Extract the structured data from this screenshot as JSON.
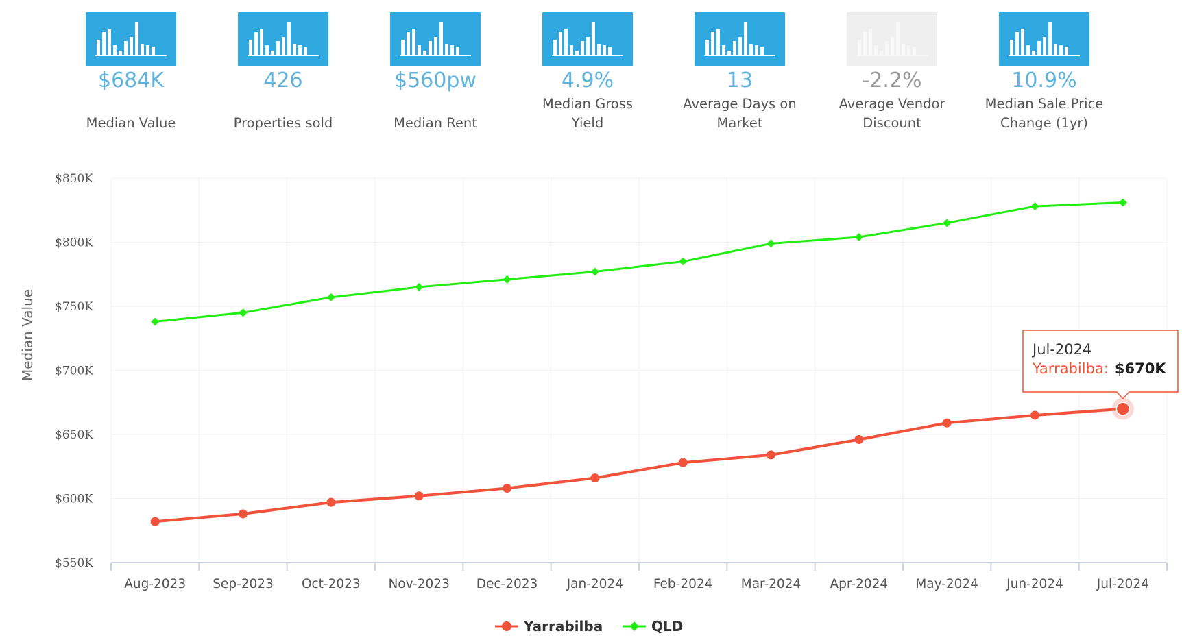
{
  "stats": [
    {
      "value": "$684K",
      "label": "Median Value",
      "icon": "bar-chart-icon",
      "color": "#2fa8e0",
      "muted": false
    },
    {
      "value": "426",
      "label": "Properties sold",
      "icon": "bar-chart-icon",
      "color": "#2fa8e0",
      "muted": false
    },
    {
      "value": "$560pw",
      "label": "Median Rent",
      "icon": "bar-chart-icon",
      "color": "#2fa8e0",
      "muted": false
    },
    {
      "value": "4.9%",
      "label": "Median Gross Yield",
      "icon": "bar-chart-icon",
      "color": "#2fa8e0",
      "muted": false
    },
    {
      "value": "13",
      "label": "Average Days on Market",
      "icon": "bar-chart-icon",
      "color": "#2fa8e0",
      "muted": false
    },
    {
      "value": "-2.2%",
      "label": "Average Vendor Discount",
      "icon": "bar-chart-icon",
      "color": "#efefef",
      "muted": true
    },
    {
      "value": "10.9%",
      "label": "Median Sale Price Change (1yr)",
      "icon": "bar-chart-icon",
      "color": "#2fa8e0",
      "muted": false
    }
  ],
  "chart_data": {
    "type": "line",
    "title": "",
    "xlabel": "",
    "ylabel": "Median Value",
    "categories": [
      "Aug-2023",
      "Sep-2023",
      "Oct-2023",
      "Nov-2023",
      "Dec-2023",
      "Jan-2024",
      "Feb-2024",
      "Mar-2024",
      "Apr-2024",
      "May-2024",
      "Jun-2024",
      "Jul-2024"
    ],
    "ylim": [
      550000,
      850000
    ],
    "yticks": [
      {
        "value": 550000,
        "label": "$550K"
      },
      {
        "value": 600000,
        "label": "$600K"
      },
      {
        "value": 650000,
        "label": "$650K"
      },
      {
        "value": 700000,
        "label": "$700K"
      },
      {
        "value": 750000,
        "label": "$750K"
      },
      {
        "value": 800000,
        "label": "$800K"
      },
      {
        "value": 850000,
        "label": "$850K"
      }
    ],
    "series": [
      {
        "name": "Yarrabilba",
        "color": "#f0533a",
        "marker": "circle",
        "values": [
          582000,
          588000,
          597000,
          602000,
          608000,
          616000,
          628000,
          634000,
          646000,
          659000,
          665000,
          670000
        ]
      },
      {
        "name": "QLD",
        "color": "#22ee11",
        "marker": "diamond",
        "values": [
          738000,
          745000,
          757000,
          765000,
          771000,
          777000,
          785000,
          799000,
          804000,
          815000,
          828000,
          831000
        ]
      }
    ],
    "legend_position": "bottom-center",
    "grid": true,
    "tooltip": {
      "date": "Jul-2024",
      "series": "Yarrabilba",
      "sep": ":",
      "value": "$670K"
    }
  }
}
